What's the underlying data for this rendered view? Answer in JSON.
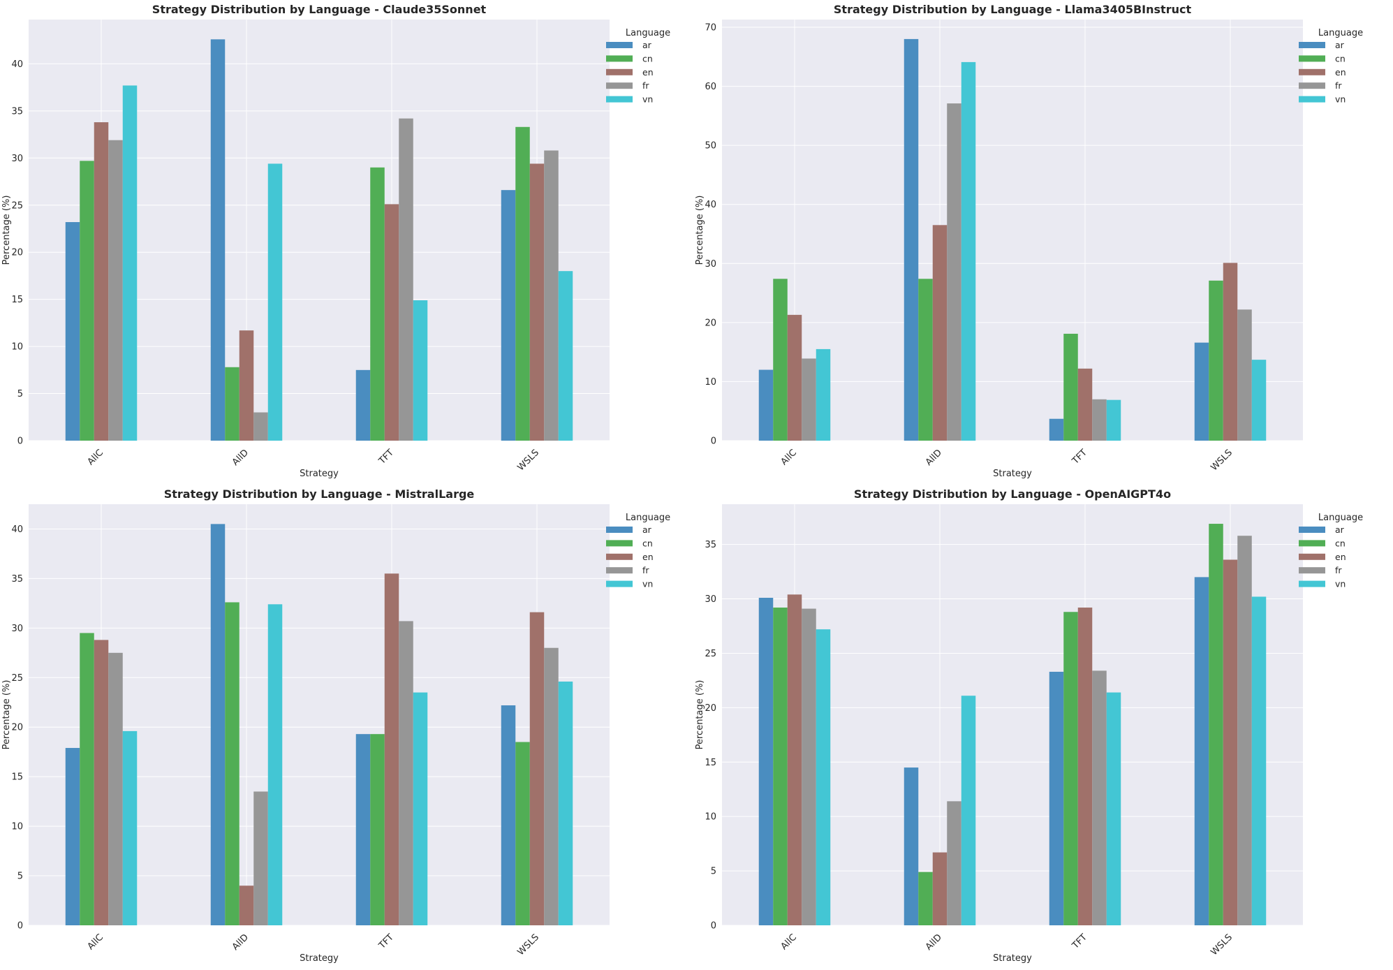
{
  "colors": {
    "ar": "#4a8dc0",
    "cn": "#51ae55",
    "en": "#a0716a",
    "fr": "#969696",
    "vn": "#43c6d4",
    "plot_bg": "#eaeaf2",
    "grid": "#ffffff"
  },
  "chart_data": [
    {
      "type": "bar",
      "title": "Strategy Distribution by Language - Claude35Sonnet",
      "xlabel": "Strategy",
      "ylabel": "Percentage (%)",
      "categories": [
        "AllC",
        "AllD",
        "TFT",
        "WSLS"
      ],
      "ylim": [
        0,
        44.7
      ],
      "yticks": [
        0,
        5,
        10,
        15,
        20,
        25,
        30,
        35,
        40
      ],
      "legend_title": "Language",
      "legend_position": "upper-right-outside",
      "grid": true,
      "series": [
        {
          "name": "ar",
          "values": [
            23.2,
            42.6,
            7.5,
            26.6
          ]
        },
        {
          "name": "cn",
          "values": [
            29.7,
            7.8,
            29.0,
            33.3
          ]
        },
        {
          "name": "en",
          "values": [
            33.8,
            11.7,
            25.1,
            29.4
          ]
        },
        {
          "name": "fr",
          "values": [
            31.9,
            3.0,
            34.2,
            30.8
          ]
        },
        {
          "name": "vn",
          "values": [
            37.7,
            29.4,
            14.9,
            18.0
          ]
        }
      ]
    },
    {
      "type": "bar",
      "title": "Strategy Distribution by Language - Llama3405BInstruct",
      "xlabel": "Strategy",
      "ylabel": "Percentage (%)",
      "categories": [
        "AllC",
        "AllD",
        "TFT",
        "WSLS"
      ],
      "ylim": [
        0,
        71.3
      ],
      "yticks": [
        0,
        10,
        20,
        30,
        40,
        50,
        60,
        70
      ],
      "legend_title": "Language",
      "legend_position": "upper-right-outside",
      "grid": true,
      "series": [
        {
          "name": "ar",
          "values": [
            12.0,
            68.0,
            3.7,
            16.6
          ]
        },
        {
          "name": "cn",
          "values": [
            27.4,
            27.4,
            18.1,
            27.1
          ]
        },
        {
          "name": "en",
          "values": [
            21.3,
            36.5,
            12.2,
            30.1
          ]
        },
        {
          "name": "fr",
          "values": [
            13.9,
            57.1,
            7.0,
            22.2
          ]
        },
        {
          "name": "vn",
          "values": [
            15.5,
            64.1,
            6.9,
            13.7
          ]
        }
      ]
    },
    {
      "type": "bar",
      "title": "Strategy Distribution by Language - MistralLarge",
      "xlabel": "Strategy",
      "ylabel": "Percentage (%)",
      "categories": [
        "AllC",
        "AllD",
        "TFT",
        "WSLS"
      ],
      "ylim": [
        0,
        42.5
      ],
      "yticks": [
        0,
        5,
        10,
        15,
        20,
        25,
        30,
        35,
        40
      ],
      "legend_title": "Language",
      "legend_position": "upper-right-outside",
      "grid": true,
      "series": [
        {
          "name": "ar",
          "values": [
            17.9,
            40.5,
            19.3,
            22.2
          ]
        },
        {
          "name": "cn",
          "values": [
            29.5,
            32.6,
            19.3,
            18.5
          ]
        },
        {
          "name": "en",
          "values": [
            28.8,
            4.0,
            35.5,
            31.6
          ]
        },
        {
          "name": "fr",
          "values": [
            27.5,
            13.5,
            30.7,
            28.0
          ]
        },
        {
          "name": "vn",
          "values": [
            19.6,
            32.4,
            23.5,
            24.6
          ]
        }
      ]
    },
    {
      "type": "bar",
      "title": "Strategy Distribution by Language - OpenAIGPT4o",
      "xlabel": "Strategy",
      "ylabel": "Percentage (%)",
      "categories": [
        "AllC",
        "AllD",
        "TFT",
        "WSLS"
      ],
      "ylim": [
        0,
        38.7
      ],
      "yticks": [
        0,
        5,
        10,
        15,
        20,
        25,
        30,
        35
      ],
      "legend_title": "Language",
      "legend_position": "upper-right-outside",
      "grid": true,
      "series": [
        {
          "name": "ar",
          "values": [
            30.1,
            14.5,
            23.3,
            32.0
          ]
        },
        {
          "name": "cn",
          "values": [
            29.2,
            4.9,
            28.8,
            36.9
          ]
        },
        {
          "name": "en",
          "values": [
            30.4,
            6.7,
            29.2,
            33.6
          ]
        },
        {
          "name": "fr",
          "values": [
            29.1,
            11.4,
            23.4,
            35.8
          ]
        },
        {
          "name": "vn",
          "values": [
            27.2,
            21.1,
            21.4,
            30.2
          ]
        }
      ]
    }
  ]
}
